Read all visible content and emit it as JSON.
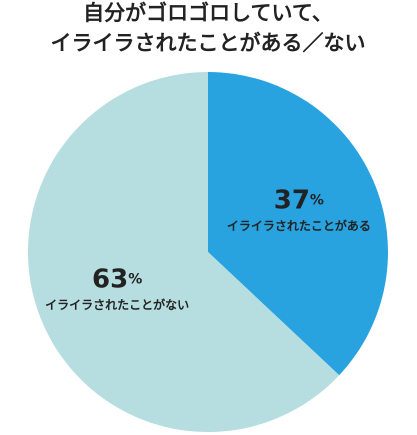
{
  "chart_data": {
    "type": "pie",
    "title": [
      "自分がゴロゴロしていて、",
      "イライラされたことがある／ない"
    ],
    "categories": [
      "イライラされたことがある",
      "イライラされたことがない"
    ],
    "values": [
      37,
      63
    ],
    "value_labels": [
      "37%",
      "63%"
    ],
    "colors": [
      "#29a3e0",
      "#b6dde0"
    ]
  }
}
